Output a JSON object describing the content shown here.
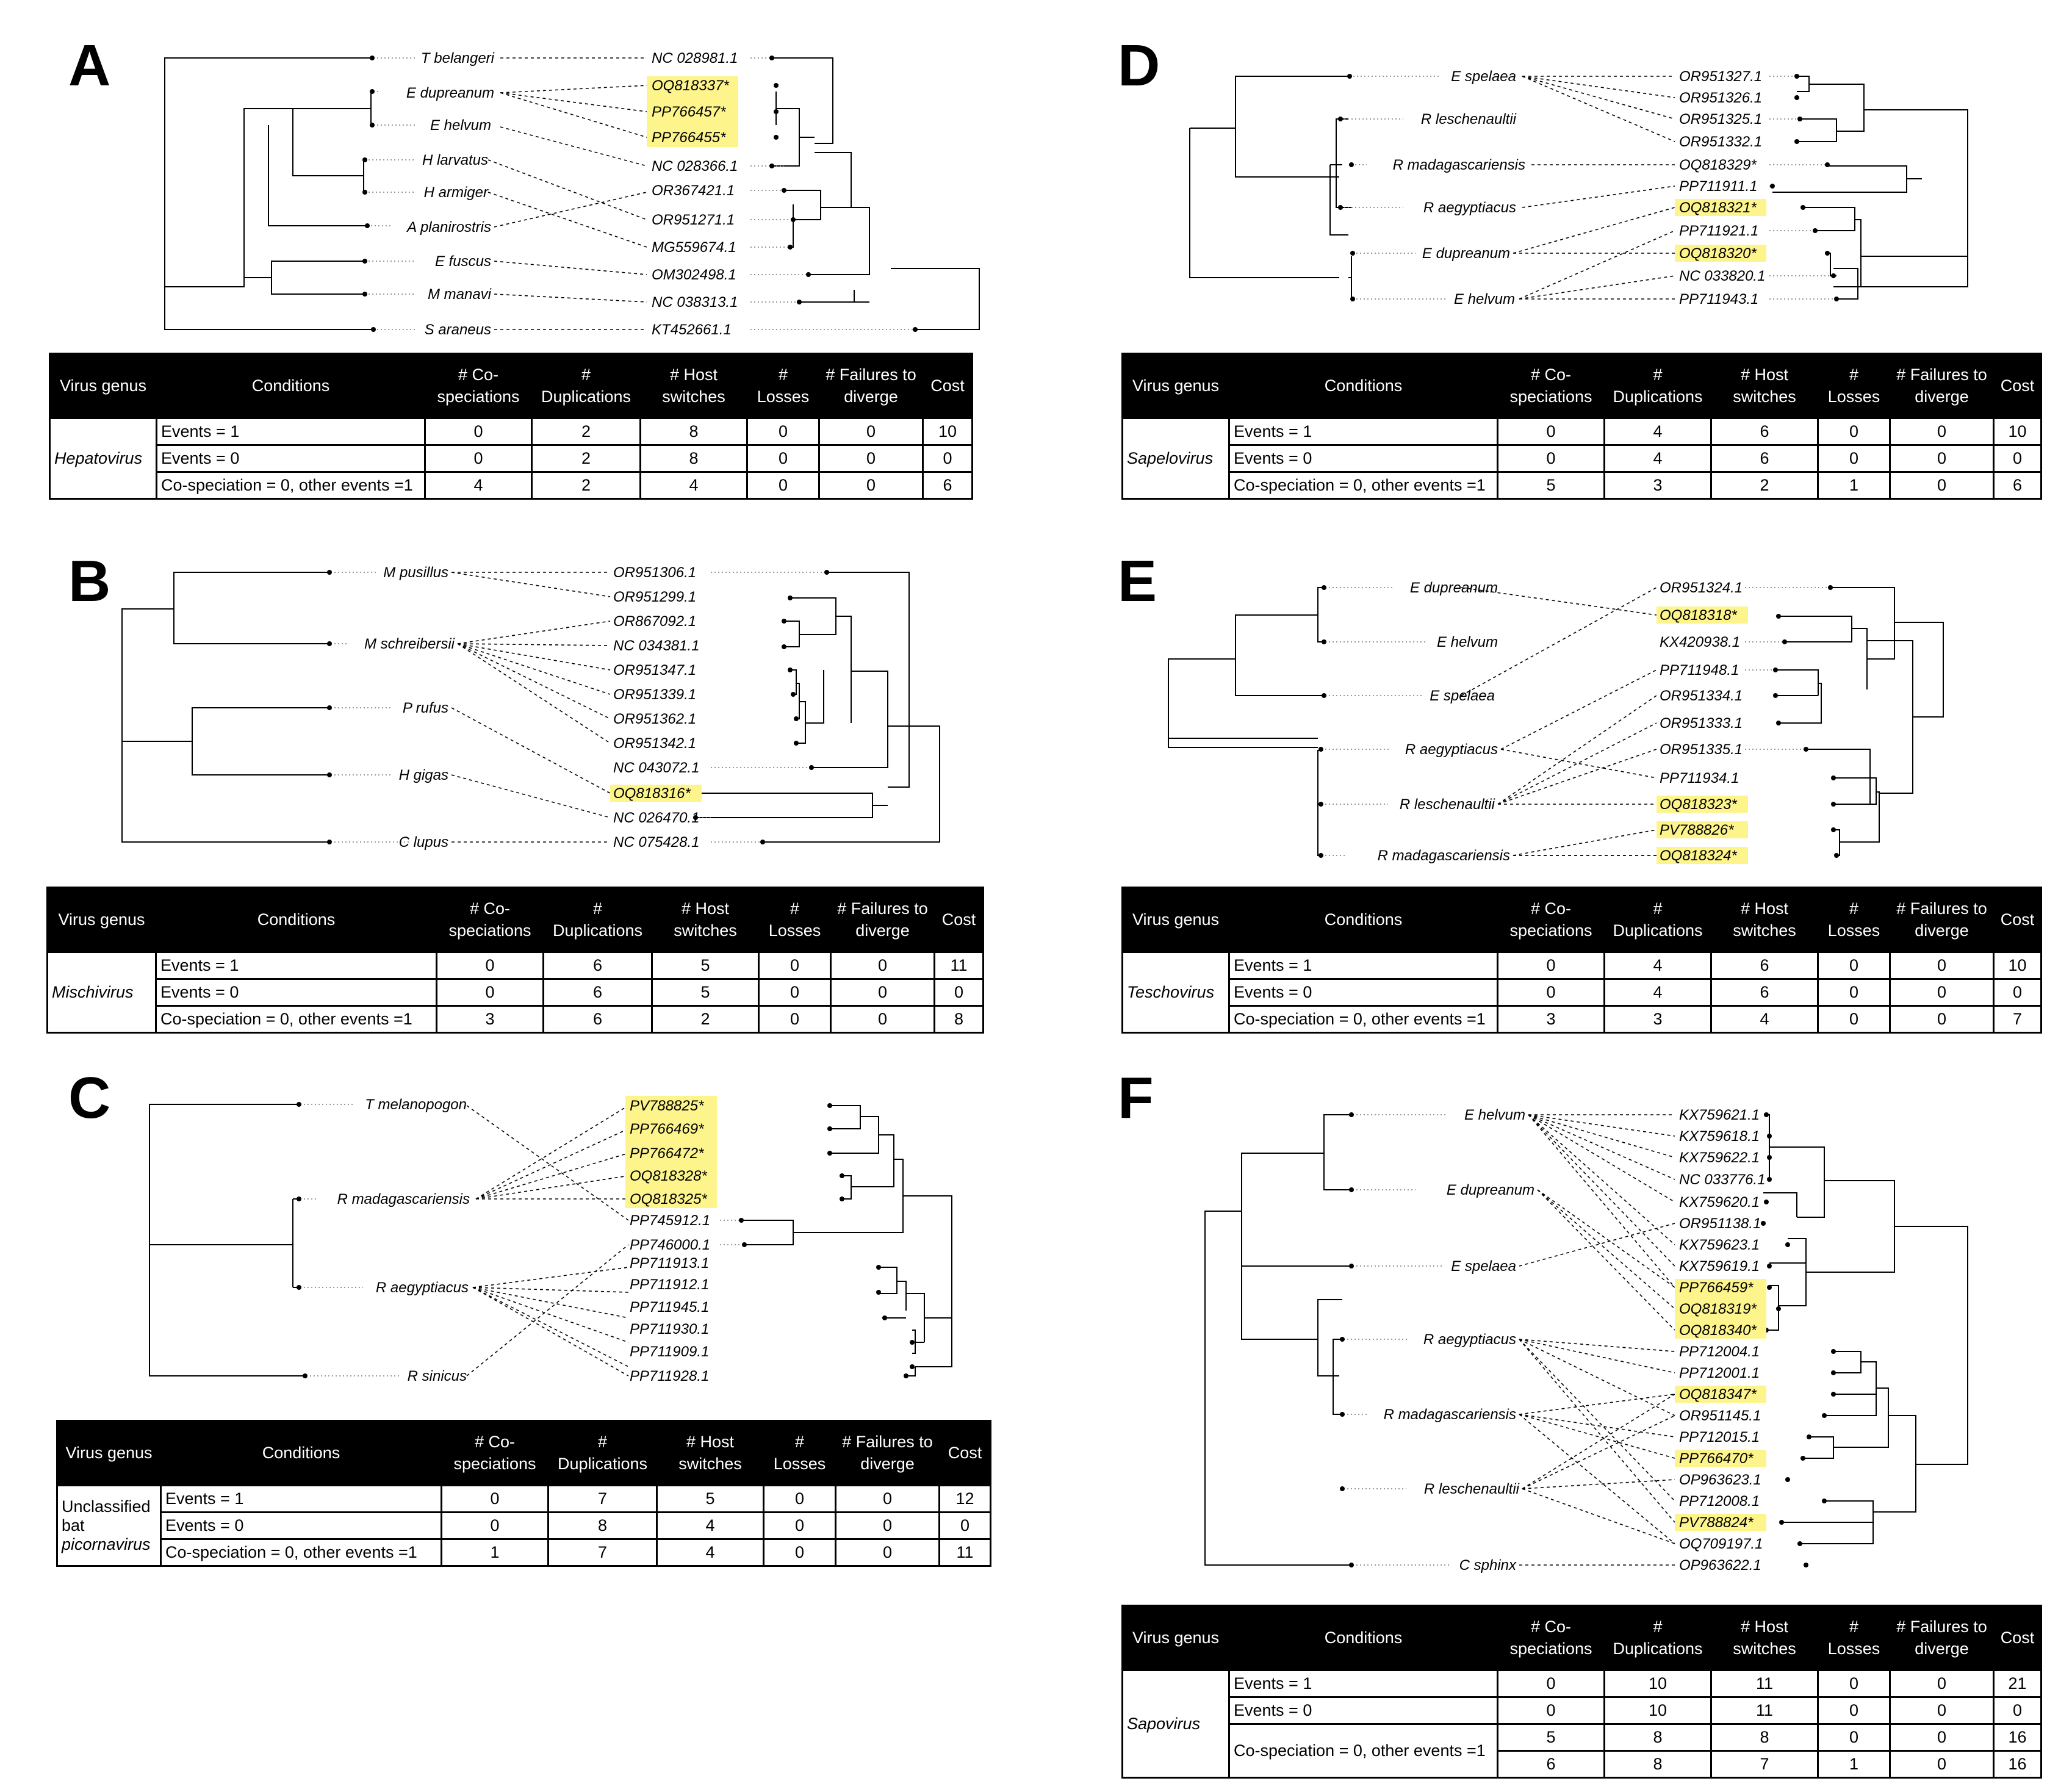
{
  "table_header": {
    "genus": "Virus genus",
    "conditions": "Conditions",
    "cosp": "# Co-speciations",
    "dup": "# Duplications",
    "hs": "# Host switches",
    "loss": "# Losses",
    "fail": "# Failures to diverge",
    "cost": "Cost"
  },
  "highlight_color": "#fdf48c",
  "panels": [
    {
      "letter": "A",
      "hosts": [
        "T belangeri",
        "E dupreanum",
        "E helvum",
        "H larvatus",
        "H armiger",
        "A planirostris",
        "E fuscus",
        "M manavi",
        "S araneus"
      ],
      "viruses": [
        "NC 028981.1",
        "OQ818337*",
        "PP766457*",
        "PP766455*",
        "NC 028366.1",
        "OR367421.1",
        "OR951271.1",
        "MG559674.1",
        "OM302498.1",
        "NC 038313.1",
        "KT452661.1"
      ],
      "highlighted": [
        1,
        2,
        3
      ],
      "genus": "Hepatovirus",
      "rows": [
        {
          "cond": "Events = 1",
          "vals": [
            "0",
            "2",
            "8",
            "0",
            "0",
            "10"
          ]
        },
        {
          "cond": "Events = 0",
          "vals": [
            "0",
            "2",
            "8",
            "0",
            "0",
            "0"
          ]
        },
        {
          "cond": "Co-speciation = 0, other events =1",
          "vals": [
            "4",
            "2",
            "4",
            "0",
            "0",
            "6"
          ]
        }
      ]
    },
    {
      "letter": "B",
      "hosts": [
        "M pusillus",
        "M schreibersii",
        "P rufus",
        "H gigas",
        "C lupus"
      ],
      "viruses": [
        "OR951306.1",
        "OR951299.1",
        "OR867092.1",
        "NC 034381.1",
        "OR951347.1",
        "OR951339.1",
        "OR951362.1",
        "OR951342.1",
        "NC 043072.1",
        "OQ818316*",
        "NC 026470.1",
        "NC 075428.1"
      ],
      "highlighted": [
        9
      ],
      "genus": "Mischivirus",
      "rows": [
        {
          "cond": "Events = 1",
          "vals": [
            "0",
            "6",
            "5",
            "0",
            "0",
            "11"
          ]
        },
        {
          "cond": "Events = 0",
          "vals": [
            "0",
            "6",
            "5",
            "0",
            "0",
            "0"
          ]
        },
        {
          "cond": "Co-speciation = 0, other events =1",
          "vals": [
            "3",
            "6",
            "2",
            "0",
            "0",
            "8"
          ]
        }
      ]
    },
    {
      "letter": "C",
      "hosts": [
        "T melanopogon",
        "R madagascariensis",
        "R aegyptiacus",
        "R sinicus"
      ],
      "viruses": [
        "PV788825*",
        "PP766469*",
        "PP766472*",
        "OQ818328*",
        "OQ818325*",
        "PP745912.1",
        "PP746000.1",
        "PP711913.1",
        "PP711912.1",
        "PP711945.1",
        "PP711930.1",
        "PP711909.1",
        "PP711928.1"
      ],
      "highlighted": [
        0,
        1,
        2,
        3,
        4
      ],
      "genus_lines": [
        "Unclassified",
        "bat",
        "picornavirus"
      ],
      "header_hs": "# Host switches",
      "header_loss": "# Losses",
      "header_fail": "# Failures to diverge",
      "rows": [
        {
          "cond": "Events = 1",
          "vals": [
            "0",
            "7",
            "5",
            "0",
            "0",
            "12"
          ]
        },
        {
          "cond": "Events = 0",
          "vals": [
            "0",
            "8",
            "4",
            "0",
            "0",
            "0"
          ]
        },
        {
          "cond": "Co-speciation = 0, other events =1",
          "vals": [
            "1",
            "7",
            "4",
            "0",
            "0",
            "11"
          ]
        }
      ]
    },
    {
      "letter": "D",
      "hosts": [
        "E spelaea",
        "R leschenaultii",
        "R madagascariensis",
        "R aegyptiacus",
        "E dupreanum",
        "E helvum"
      ],
      "viruses": [
        "OR951327.1",
        "OR951326.1",
        "OR951325.1",
        "OR951332.1",
        "OQ818329*",
        "PP711911.1",
        "OQ818321*",
        "PP711921.1",
        "OQ818320*",
        "NC 033820.1",
        "PP711943.1"
      ],
      "highlighted": [
        6,
        8
      ],
      "genus": "Sapelovirus",
      "rows": [
        {
          "cond": "Events = 1",
          "vals": [
            "0",
            "4",
            "6",
            "0",
            "0",
            "10"
          ]
        },
        {
          "cond": "Events = 0",
          "vals": [
            "0",
            "4",
            "6",
            "0",
            "0",
            "0"
          ]
        },
        {
          "cond": "Co-speciation = 0, other events =1",
          "vals": [
            "5",
            "3",
            "2",
            "1",
            "0",
            "6"
          ]
        }
      ]
    },
    {
      "letter": "E",
      "hosts": [
        "E dupreanum",
        "E helvum",
        "E spelaea",
        "R aegyptiacus",
        "R leschenaultii",
        "R madagascariensis"
      ],
      "viruses": [
        "OR951324.1",
        "OQ818318*",
        "KX420938.1",
        "PP711948.1",
        "OR951334.1",
        "OR951333.1",
        "OR951335.1",
        "PP711934.1",
        "OQ818323*",
        "PV788826*",
        "OQ818324*"
      ],
      "highlighted": [
        1,
        8,
        9,
        10
      ],
      "genus": "Teschovirus",
      "rows": [
        {
          "cond": "Events = 1",
          "vals": [
            "0",
            "4",
            "6",
            "0",
            "0",
            "10"
          ]
        },
        {
          "cond": "Events = 0",
          "vals": [
            "0",
            "4",
            "6",
            "0",
            "0",
            "0"
          ]
        },
        {
          "cond": "Co-speciation = 0, other events =1",
          "vals": [
            "3",
            "3",
            "4",
            "0",
            "0",
            "7"
          ]
        }
      ]
    },
    {
      "letter": "F",
      "hosts": [
        "E helvum",
        "E dupreanum",
        "E spelaea",
        "R aegyptiacus",
        "R madagascariensis",
        "R leschenaultii",
        "C sphinx"
      ],
      "viruses": [
        "KX759621.1",
        "KX759618.1",
        "KX759622.1",
        "NC 033776.1",
        "KX759620.1",
        "OR951138.1",
        "KX759623.1",
        "KX759619.1",
        "PP766459*",
        "OQ818319*",
        "OQ818340*",
        "PP712004.1",
        "PP712001.1",
        "OQ818347*",
        "OR951145.1",
        "PP712015.1",
        "PP766470*",
        "OP963623.1",
        "PP712008.1",
        "PV788824*",
        "OQ709197.1",
        "OP963622.1"
      ],
      "highlighted": [
        8,
        9,
        10,
        13,
        16,
        19
      ],
      "genus": "Sapovirus",
      "rows": [
        {
          "cond": "Events = 1",
          "vals": [
            "0",
            "10",
            "11",
            "0",
            "0",
            "21"
          ]
        },
        {
          "cond": "Events = 0",
          "vals": [
            "0",
            "10",
            "11",
            "0",
            "0",
            "0"
          ]
        },
        {
          "cond": "Co-speciation = 0, other events =1",
          "vals": [
            "5",
            "8",
            "8",
            "0",
            "0",
            "16"
          ]
        },
        {
          "cond": "",
          "vals": [
            "6",
            "8",
            "7",
            "1",
            "0",
            "16"
          ]
        }
      ]
    }
  ]
}
